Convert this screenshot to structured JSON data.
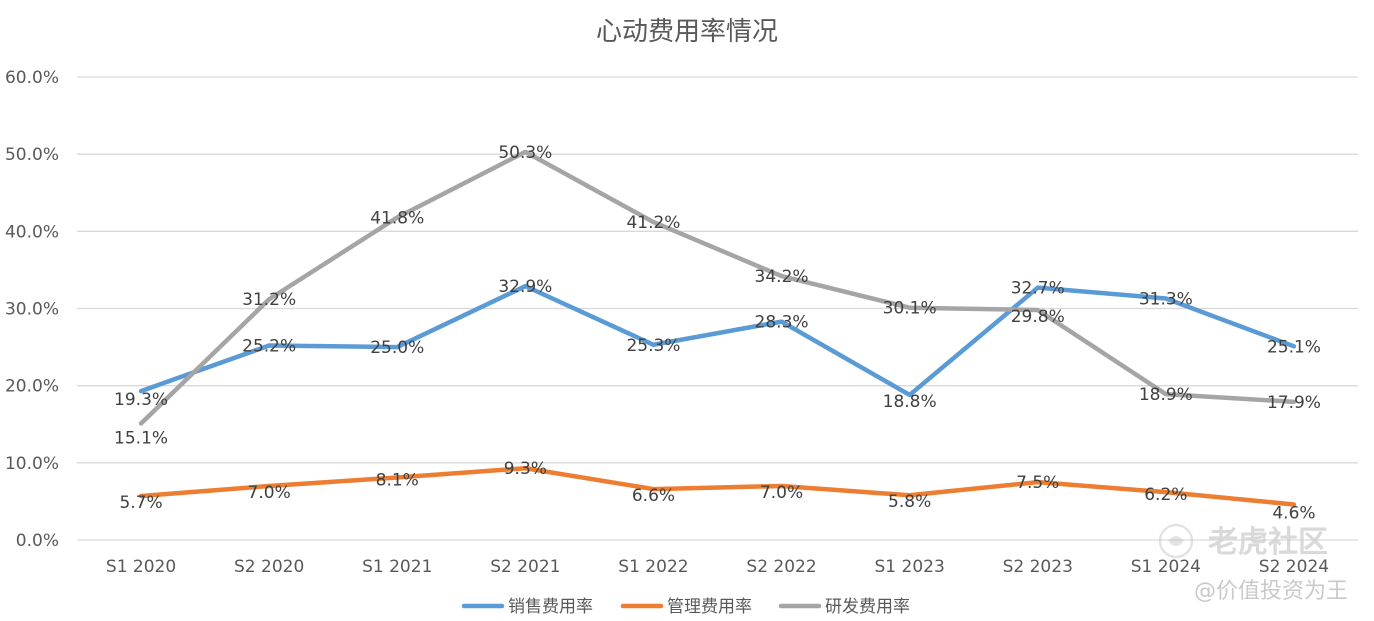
{
  "chart_data": {
    "type": "line",
    "title": "心动费用率情况",
    "xlabel": "",
    "ylabel": "",
    "ylim": [
      0,
      60
    ],
    "yticks": [
      "0.0%",
      "10.0%",
      "20.0%",
      "30.0%",
      "40.0%",
      "50.0%",
      "60.0%"
    ],
    "ytick_values": [
      0,
      10,
      20,
      30,
      40,
      50,
      60
    ],
    "categories": [
      "S1 2020",
      "S2 2020",
      "S1 2021",
      "S2 2021",
      "S1 2022",
      "S2 2022",
      "S1 2023",
      "S2 2023",
      "S1 2024",
      "S2 2024"
    ],
    "legend_position": "bottom",
    "grid": true,
    "series": [
      {
        "name": "销售费用率",
        "color": "#5b9bd5",
        "values": [
          19.3,
          25.2,
          25.0,
          32.9,
          25.3,
          28.3,
          18.8,
          32.7,
          31.3,
          25.1
        ],
        "labels": [
          "19.3%",
          "25.2%",
          "25.0%",
          "32.9%",
          "25.3%",
          "28.3%",
          "18.8%",
          "32.7%",
          "31.3%",
          "25.1%"
        ]
      },
      {
        "name": "管理费用率",
        "color": "#ed7d31",
        "values": [
          5.7,
          7.0,
          8.1,
          9.3,
          6.6,
          7.0,
          5.8,
          7.5,
          6.2,
          4.6
        ],
        "labels": [
          "5.7%",
          "7.0%",
          "8.1%",
          "9.3%",
          "6.6%",
          "7.0%",
          "5.8%",
          "7.5%",
          "6.2%",
          "4.6%"
        ]
      },
      {
        "name": "研发费用率",
        "color": "#a5a5a5",
        "values": [
          15.1,
          31.2,
          41.8,
          50.3,
          41.2,
          34.2,
          30.1,
          29.8,
          18.9,
          17.9
        ],
        "labels": [
          "15.1%",
          "31.2%",
          "41.8%",
          "50.3%",
          "41.2%",
          "34.2%",
          "30.1%",
          "29.8%",
          "18.9%",
          "17.9%"
        ]
      }
    ]
  },
  "watermark": {
    "brand": "老虎社区",
    "author": "@价值投资为王"
  },
  "colors": {
    "grid": "#d9d9d9",
    "axis_text": "#595959"
  }
}
